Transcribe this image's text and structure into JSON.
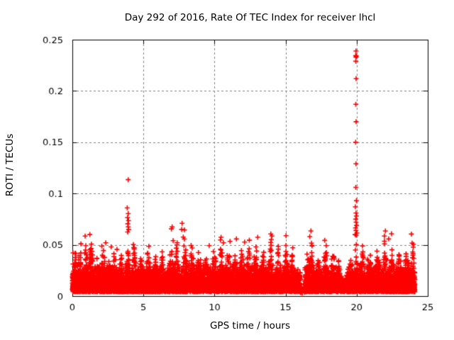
{
  "chart_data": {
    "type": "scatter",
    "title": "Day 292 of 2016, Rate Of TEC Index for receiver lhcl",
    "xlabel": "GPS time / hours",
    "ylabel": "ROTI / TECUs",
    "xlim": [
      0,
      25
    ],
    "ylim": [
      0,
      0.25
    ],
    "xticks": {
      "values": [
        0,
        5,
        10,
        15,
        20,
        25
      ],
      "labels": [
        "0",
        "5",
        "10",
        "15",
        "20",
        "25"
      ]
    },
    "yticks": {
      "values": [
        0,
        0.05,
        0.1,
        0.15,
        0.2,
        0.25
      ],
      "labels": [
        "0",
        "0.05",
        "0.1",
        "0.15",
        "0.2",
        "0.25"
      ]
    },
    "grid": {
      "shown": true,
      "style": "dashed",
      "color": "#7f7f7f",
      "dash": [
        3,
        3
      ]
    },
    "axis_color": "#000000",
    "background_color": "#ffffff",
    "legend": "none",
    "series_name": "ROTI",
    "marker": {
      "shape": "plus",
      "color": "#ff0000",
      "size": 7,
      "stroke": 1.6
    },
    "time_range": [
      0,
      24.1
    ],
    "baseline": {
      "floor": 0.0045,
      "floor_jitter": 0.004,
      "band_top": 0.024,
      "shape_exp": 2.6,
      "bottom_fill_max": 0.0155,
      "step_hours": 0.006,
      "seed": 1292
    },
    "data_gaps": [
      [
        16.03,
        16.35
      ]
    ],
    "quiet_zones": [
      [
        18.85,
        19.3,
        0.4
      ]
    ],
    "cluster_peaks": [
      [
        0.15,
        0.048,
        0.1
      ],
      [
        0.55,
        0.042,
        0.1
      ],
      [
        0.95,
        0.05,
        0.1
      ],
      [
        1.3,
        0.056,
        0.09
      ],
      [
        1.7,
        0.044,
        0.1
      ],
      [
        2.15,
        0.052,
        0.1
      ],
      [
        2.6,
        0.042,
        0.1
      ],
      [
        3.0,
        0.046,
        0.1
      ],
      [
        3.45,
        0.042,
        0.1
      ],
      [
        3.93,
        0.062,
        0.07
      ],
      [
        4.35,
        0.05,
        0.1
      ],
      [
        4.85,
        0.036,
        0.12
      ],
      [
        5.35,
        0.046,
        0.1
      ],
      [
        5.85,
        0.04,
        0.1
      ],
      [
        6.35,
        0.042,
        0.1
      ],
      [
        6.95,
        0.05,
        0.1
      ],
      [
        7.35,
        0.056,
        0.08
      ],
      [
        7.9,
        0.06,
        0.09
      ],
      [
        8.4,
        0.05,
        0.1
      ],
      [
        8.9,
        0.044,
        0.1
      ],
      [
        9.4,
        0.044,
        0.1
      ],
      [
        9.95,
        0.048,
        0.1
      ],
      [
        10.45,
        0.056,
        0.09
      ],
      [
        10.95,
        0.046,
        0.1
      ],
      [
        11.4,
        0.044,
        0.1
      ],
      [
        11.9,
        0.048,
        0.1
      ],
      [
        12.4,
        0.052,
        0.1
      ],
      [
        12.9,
        0.05,
        0.1
      ],
      [
        13.4,
        0.046,
        0.1
      ],
      [
        13.95,
        0.056,
        0.09
      ],
      [
        14.5,
        0.048,
        0.1
      ],
      [
        15.05,
        0.056,
        0.09
      ],
      [
        15.5,
        0.046,
        0.09
      ],
      [
        16.55,
        0.05,
        0.09
      ],
      [
        16.8,
        0.056,
        0.08
      ],
      [
        17.3,
        0.048,
        0.1
      ],
      [
        17.8,
        0.053,
        0.09
      ],
      [
        18.35,
        0.042,
        0.1
      ],
      [
        18.7,
        0.038,
        0.08
      ],
      [
        19.55,
        0.044,
        0.1
      ],
      [
        19.97,
        0.062,
        0.05
      ],
      [
        20.4,
        0.054,
        0.09
      ],
      [
        20.9,
        0.048,
        0.1
      ],
      [
        21.45,
        0.052,
        0.1
      ],
      [
        22.0,
        0.058,
        0.09
      ],
      [
        22.5,
        0.05,
        0.1
      ],
      [
        23.0,
        0.048,
        0.1
      ],
      [
        23.5,
        0.05,
        0.1
      ],
      [
        23.95,
        0.052,
        0.08
      ]
    ],
    "outlier_points": [
      [
        0.6,
        0.051
      ],
      [
        0.9,
        0.0585
      ],
      [
        1.23,
        0.06
      ],
      [
        2.35,
        0.052
      ],
      [
        2.73,
        0.048
      ],
      [
        3.14,
        0.0455
      ],
      [
        3.93,
        0.1135
      ],
      [
        3.86,
        0.086
      ],
      [
        3.93,
        0.0805
      ],
      [
        3.88,
        0.0765
      ],
      [
        3.95,
        0.0735
      ],
      [
        3.9,
        0.0705
      ],
      [
        3.93,
        0.0675
      ],
      [
        3.96,
        0.065
      ],
      [
        3.89,
        0.0625
      ],
      [
        5.38,
        0.0485
      ],
      [
        7.02,
        0.0675
      ],
      [
        6.97,
        0.0655
      ],
      [
        7.09,
        0.054
      ],
      [
        7.72,
        0.071
      ],
      [
        7.88,
        0.0645
      ],
      [
        7.8,
        0.0575
      ],
      [
        7.69,
        0.065
      ],
      [
        8.43,
        0.047
      ],
      [
        9.63,
        0.0492
      ],
      [
        10.46,
        0.0573
      ],
      [
        10.63,
        0.052
      ],
      [
        11.09,
        0.0534
      ],
      [
        11.54,
        0.0557
      ],
      [
        12.12,
        0.0527
      ],
      [
        12.45,
        0.0545
      ],
      [
        13.04,
        0.0573
      ],
      [
        14.04,
        0.0585
      ],
      [
        15.03,
        0.0589
      ],
      [
        16.7,
        0.058
      ],
      [
        16.78,
        0.0635
      ],
      [
        16.82,
        0.0516
      ],
      [
        17.75,
        0.0543
      ],
      [
        19.95,
        0.239
      ],
      [
        19.93,
        0.2345
      ],
      [
        19.97,
        0.234
      ],
      [
        19.95,
        0.233
      ],
      [
        19.94,
        0.229
      ],
      [
        19.96,
        0.212
      ],
      [
        19.94,
        0.187
      ],
      [
        19.96,
        0.17
      ],
      [
        19.93,
        0.15
      ],
      [
        19.95,
        0.129
      ],
      [
        19.94,
        0.106
      ],
      [
        19.98,
        0.093
      ],
      [
        19.91,
        0.087
      ],
      [
        19.95,
        0.081
      ],
      [
        19.98,
        0.078
      ],
      [
        19.93,
        0.075
      ],
      [
        19.96,
        0.072
      ],
      [
        19.99,
        0.069
      ],
      [
        19.92,
        0.0665
      ],
      [
        19.95,
        0.064
      ],
      [
        20.02,
        0.0615
      ],
      [
        19.89,
        0.06
      ],
      [
        21.95,
        0.0585
      ],
      [
        22.02,
        0.0635
      ],
      [
        22.25,
        0.0557
      ],
      [
        22.45,
        0.0608
      ],
      [
        23.85,
        0.0605
      ],
      [
        23.9,
        0.0516
      ]
    ]
  }
}
